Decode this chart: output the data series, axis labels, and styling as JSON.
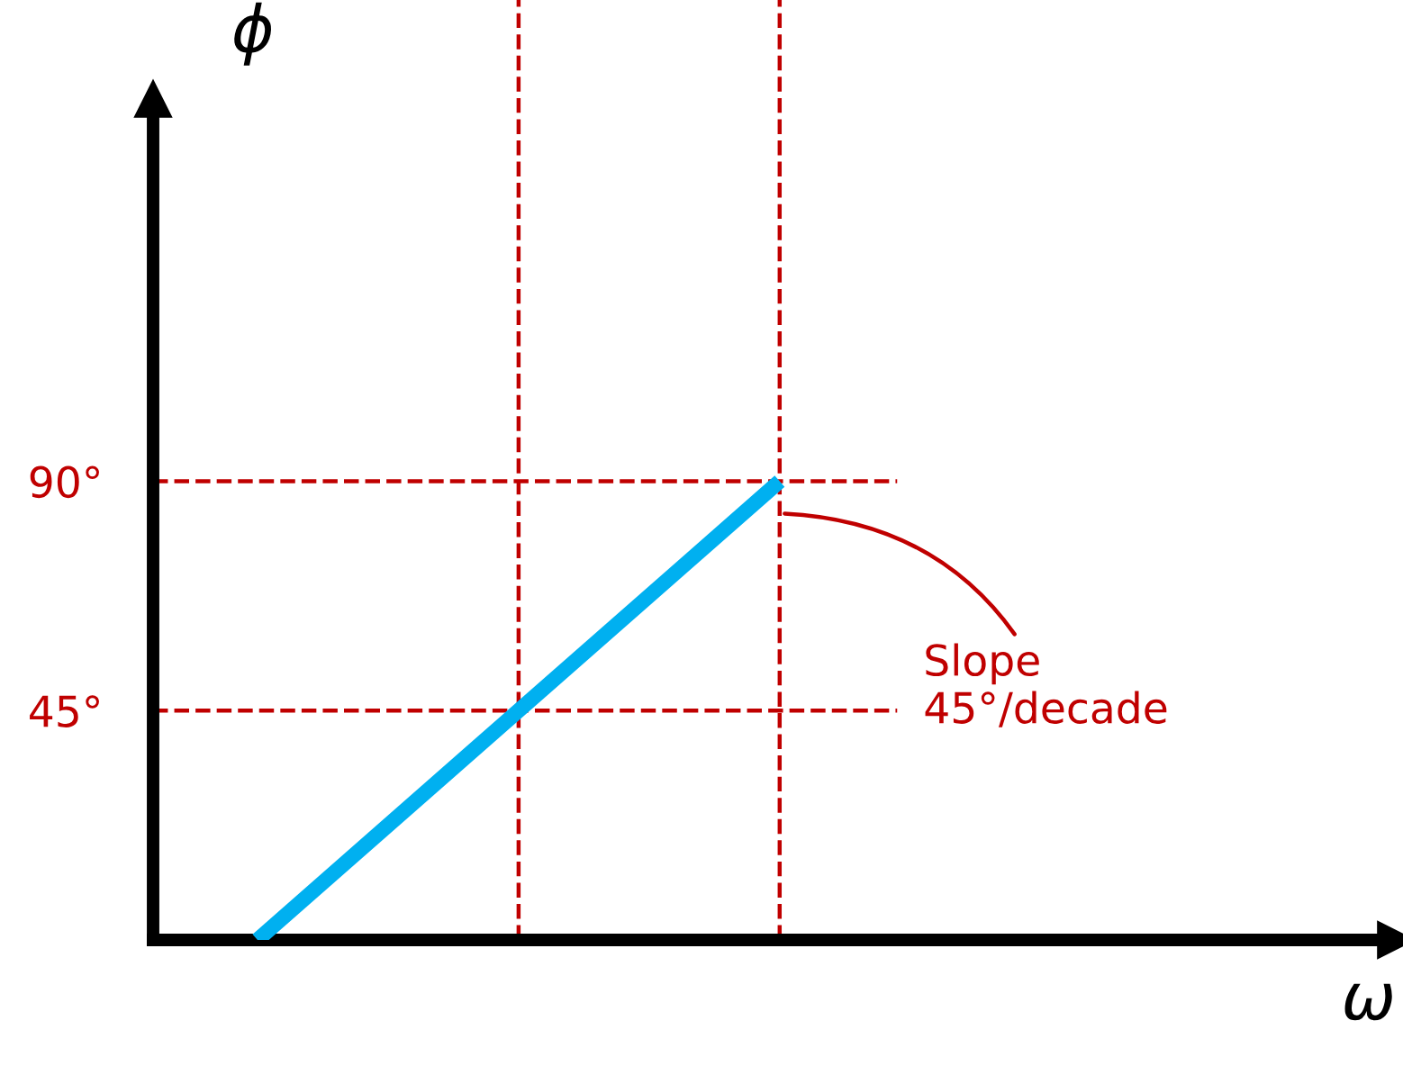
{
  "chart_data": {
    "type": "line",
    "ylabel": "ϕ",
    "categories": [
      null,
      null,
      null
    ],
    "series": [
      {
        "color": "#00b0f0",
        "values": [
          0,
          45,
          90
        ]
      }
    ],
    "ylim": [
      0,
      165
    ],
    "yticks": [
      {
        "value": 45,
        "label": "45°"
      },
      {
        "value": 90,
        "label": "90°"
      }
    ],
    "ref_lines": [
      {
        "axis": "y",
        "value": 45,
        "color": "#c00000",
        "line_style": "dashed"
      },
      {
        "axis": "y",
        "value": 90,
        "color": "#c00000",
        "line_style": "dashed"
      }
    ],
    "annotations": [
      "Slope\n45°/decade",
      "ω"
    ],
    "grid": false,
    "marker": "none",
    "line_style": "solid"
  }
}
